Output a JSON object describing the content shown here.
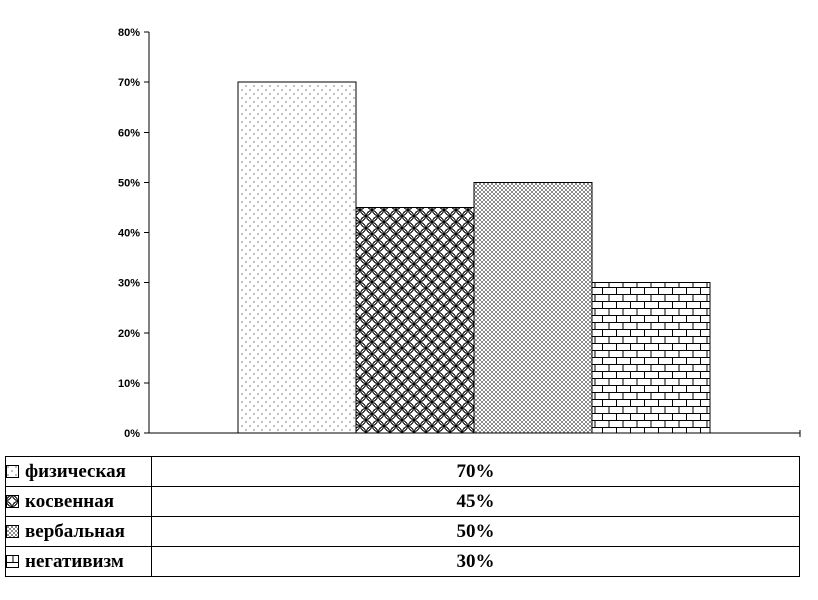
{
  "chart_data": {
    "type": "bar",
    "title": "",
    "xlabel": "",
    "ylabel": "",
    "categories": [
      "физическая",
      "косвенная",
      "вербальная",
      "негативизм"
    ],
    "values": [
      70,
      45,
      50,
      30
    ],
    "display_values": [
      "70%",
      "45%",
      "50%",
      "30%"
    ],
    "patterns": [
      "dots",
      "scales",
      "crosshatch",
      "bricks"
    ],
    "ytick_labels": [
      "0%",
      "10%",
      "20%",
      "30%",
      "40%",
      "50%",
      "60%",
      "70%",
      "80%"
    ],
    "ylim": [
      0,
      80
    ],
    "grid": false,
    "legend_position": "bottom-table",
    "bar_fill": "#ffffff",
    "stroke_color": "#000000",
    "background_color": "#ffffff"
  }
}
